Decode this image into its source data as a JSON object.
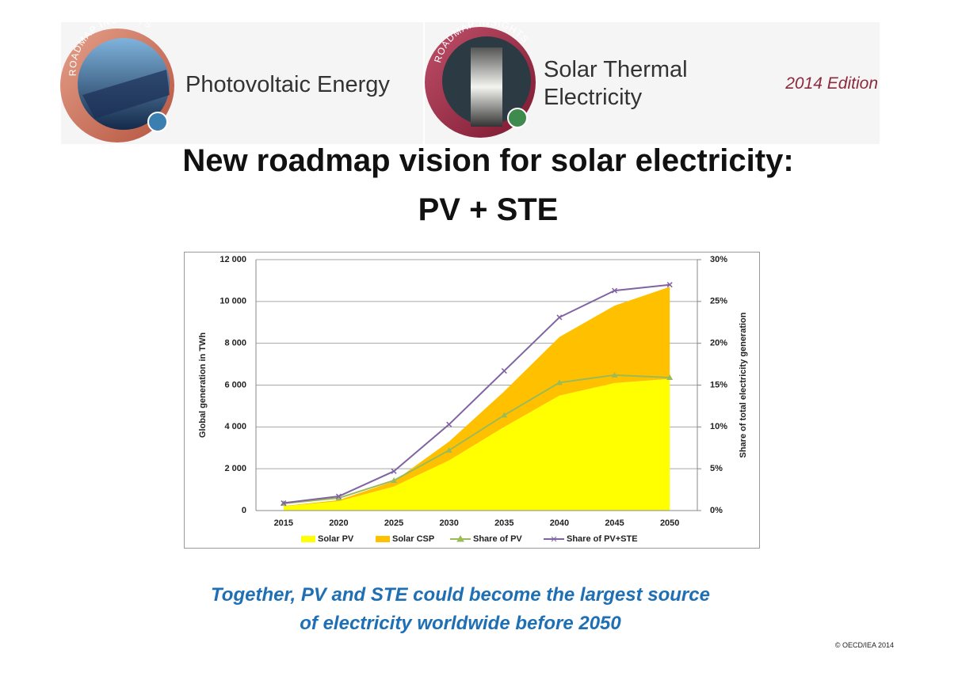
{
  "header": {
    "logos": [
      {
        "badge": "ROADMAP INSIGHTS",
        "name_lines": [
          "Photovoltaic Energy"
        ]
      },
      {
        "badge": "ROADMAP INSIGHTS",
        "name_lines": [
          "Solar Thermal",
          "Electricity"
        ]
      }
    ],
    "edition": "2014 Edition"
  },
  "title": [
    "New roadmap vision for solar electricity:",
    "PV + STE"
  ],
  "chart_data": {
    "type": "area",
    "stacked": true,
    "categories": [
      "2015",
      "2020",
      "2025",
      "2030",
      "2035",
      "2040",
      "2045",
      "2050"
    ],
    "y_label": "Global generation in TWh",
    "y2_label": "Share of total electricity generation",
    "ylim": [
      0,
      12000
    ],
    "yticks": [
      0,
      {
        "value": 2000,
        "label": "2 000"
      },
      {
        "value": 4000,
        "label": "4 000"
      },
      {
        "value": 6000,
        "label": "6 000"
      },
      {
        "value": 8000,
        "label": "8 000"
      },
      {
        "value": 10000,
        "label": "10 000"
      },
      {
        "value": 12000,
        "label": "12 000"
      }
    ],
    "y2lim": [
      0,
      30
    ],
    "y2ticks": [
      {
        "value": 0,
        "label": "0%"
      },
      {
        "value": 5,
        "label": "5%"
      },
      {
        "value": 10,
        "label": "10%"
      },
      {
        "value": 15,
        "label": "15%"
      },
      {
        "value": 20,
        "label": "20%"
      },
      {
        "value": 25,
        "label": "25%"
      },
      {
        "value": 30,
        "label": "30%"
      }
    ],
    "grid": true,
    "legend": "bottom",
    "series": [
      {
        "name": "Solar PV",
        "type": "area",
        "color": "#ffff00",
        "values": [
          200,
          450,
          1150,
          2400,
          4000,
          5500,
          6100,
          6300
        ]
      },
      {
        "name": "Solar CSP",
        "type": "area",
        "color": "#ffc000",
        "values": [
          20,
          50,
          250,
          900,
          1700,
          2800,
          3700,
          4400
        ]
      },
      {
        "name": "Share of PV",
        "type": "line",
        "axis": "y2",
        "marker": "triangle",
        "color": "#9bbb59",
        "values": [
          0.85,
          1.5,
          3.6,
          7.2,
          11.4,
          15.3,
          16.2,
          15.9
        ]
      },
      {
        "name": "Share of PV+STE",
        "type": "line",
        "axis": "y2",
        "marker": "x",
        "color": "#8064a2",
        "values": [
          0.9,
          1.7,
          4.7,
          10.3,
          16.7,
          23.1,
          26.3,
          27.0
        ]
      }
    ]
  },
  "caption": [
    "Together, PV and STE could become the largest source",
    "of electricity worldwide before 2050"
  ],
  "copyright": "© OECD/IEA 2014"
}
